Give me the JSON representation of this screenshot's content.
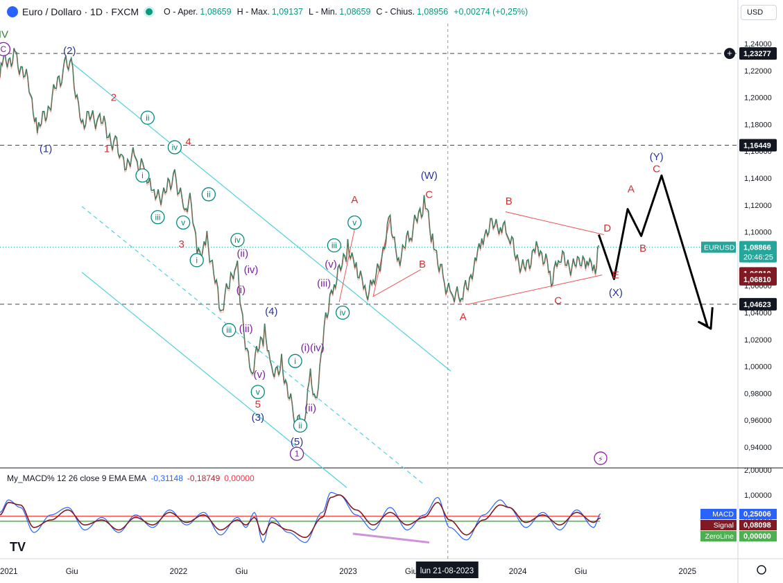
{
  "header": {
    "title": "Euro / Dollaro · 1D · FXCM",
    "open_label": "O - Aper.",
    "open": "1,08659",
    "high_label": "H - Max.",
    "high": "1,09137",
    "low_label": "L - Min.",
    "low": "1,08659",
    "close_label": "C - Chius.",
    "close": "1,08956",
    "change": "+0,00274 (+0,25%)"
  },
  "currency": "USD",
  "crosshair_date": "lun 21-08-2023",
  "macd_header": {
    "name": "My_MACD% 12 26 close 9 EMA EMA",
    "v1": "-0,31148",
    "v2": "-0,18749",
    "v3": "0,00000"
  },
  "chart_data": {
    "type": "line",
    "price_axis": {
      "ticks": [
        "1,24000",
        "1,22000",
        "1,20000",
        "1,18000",
        "1,16000",
        "1,14000",
        "1,12000",
        "1,10000",
        "1,08000",
        "1,06000",
        "1,04000",
        "1,02000",
        "1,00000",
        "0,98000",
        "0,96000",
        "0,94000"
      ],
      "tick_values": [
        1.24,
        1.22,
        1.2,
        1.18,
        1.16,
        1.14,
        1.12,
        1.1,
        1.08,
        1.06,
        1.04,
        1.02,
        1.0,
        0.98,
        0.96,
        0.94
      ],
      "range": [
        0.925,
        1.255
      ]
    },
    "time_axis": {
      "ticks": [
        "2021",
        "Giu",
        "2022",
        "Giu",
        "2023",
        "Giu",
        "2024",
        "Giu",
        "2025"
      ],
      "tick_values": [
        2021.0,
        2021.42,
        2022.0,
        2022.42,
        2023.0,
        2023.42,
        2024.0,
        2024.42,
        2025.0
      ],
      "range": [
        2021.0,
        2025.35
      ]
    },
    "price_series": {
      "name": "EURUSD",
      "x": [
        2021.0,
        2021.02,
        2021.09,
        2021.18,
        2021.22,
        2021.38,
        2021.42,
        2021.48,
        2021.58,
        2021.68,
        2021.72,
        2021.8,
        2021.85,
        2021.9,
        2021.99,
        2022.03,
        2022.09,
        2022.12,
        2022.17,
        2022.22,
        2022.3,
        2022.36,
        2022.4,
        2022.43,
        2022.48,
        2022.56,
        2022.6,
        2022.66,
        2022.73,
        2022.79,
        2022.83,
        2022.86,
        2022.92,
        2022.97,
        2023.0,
        2023.05,
        2023.1,
        2023.16,
        2023.2,
        2023.3,
        2023.35,
        2023.42,
        2023.5,
        2023.55,
        2023.62,
        2023.67,
        2023.72,
        2023.8,
        2023.84,
        2023.95,
        2024.0,
        2024.09,
        2024.17,
        2024.25,
        2024.3,
        2024.42,
        2024.46,
        2024.51,
        2024.53
      ],
      "y": [
        1.215,
        1.225,
        1.233,
        1.205,
        1.173,
        1.222,
        1.226,
        1.183,
        1.185,
        1.165,
        1.152,
        1.155,
        1.146,
        1.124,
        1.133,
        1.145,
        1.115,
        1.122,
        1.08,
        1.098,
        1.04,
        1.063,
        1.07,
        1.035,
        0.995,
        1.026,
        0.992,
        1.005,
        0.962,
        0.954,
        0.99,
        0.972,
        1.04,
        1.058,
        1.068,
        1.09,
        1.078,
        1.052,
        1.058,
        1.108,
        1.082,
        1.096,
        1.123,
        1.095,
        1.064,
        1.055,
        1.048,
        1.078,
        1.098,
        1.108,
        1.094,
        1.072,
        1.092,
        1.066,
        1.079,
        1.074,
        1.082,
        1.076,
        1.09
      ]
    },
    "price_labels": [
      {
        "text": "1,23277",
        "value": 1.23277,
        "bg": "#131722",
        "fg": "#ffffff"
      },
      {
        "text": "1,16449",
        "value": 1.16449,
        "bg": "#131722",
        "fg": "#ffffff"
      },
      {
        "text": "1,06810",
        "value": 1.0692,
        "bg": "#801922",
        "fg": "#ffffff"
      },
      {
        "text": "1,06810",
        "value": 1.0648,
        "bg": "#801922",
        "fg": "#ffffff"
      },
      {
        "text": "1,04623",
        "value": 1.04623,
        "bg": "#131722",
        "fg": "#ffffff"
      }
    ],
    "current_price": {
      "symbol": "EURUSD",
      "price": "1,08866",
      "countdown": "20:46:25",
      "value": 1.08866,
      "color": "#26a69a"
    },
    "horizontal_levels": [
      1.23277,
      1.16449,
      1.04623
    ],
    "wave_labels": [
      {
        "text": "IV",
        "x": 2021.02,
        "y": 1.247,
        "color": "#2e7d32",
        "style": "plain"
      },
      {
        "text": "C",
        "x": 2021.02,
        "y": 1.236,
        "color": "#7b1fa2",
        "style": "circle"
      },
      {
        "text": "(2)",
        "x": 2021.41,
        "y": 1.235,
        "color": "#283593",
        "style": "plain"
      },
      {
        "text": "2",
        "x": 2021.67,
        "y": 1.2,
        "color": "#d32f2f",
        "style": "plain"
      },
      {
        "text": "(1)",
        "x": 2021.27,
        "y": 1.162,
        "color": "#283593",
        "style": "plain"
      },
      {
        "text": "1",
        "x": 2021.63,
        "y": 1.162,
        "color": "#d32f2f",
        "style": "plain"
      },
      {
        "text": "ii",
        "x": 2021.87,
        "y": 1.185,
        "color": "#00897b",
        "style": "circle"
      },
      {
        "text": "iv",
        "x": 2022.03,
        "y": 1.163,
        "color": "#00897b",
        "style": "circle"
      },
      {
        "text": "4",
        "x": 2022.11,
        "y": 1.167,
        "color": "#d32f2f",
        "style": "plain"
      },
      {
        "text": "i",
        "x": 2021.84,
        "y": 1.142,
        "color": "#00897b",
        "style": "circle"
      },
      {
        "text": "ii",
        "x": 2022.23,
        "y": 1.128,
        "color": "#00897b",
        "style": "circle"
      },
      {
        "text": "iii",
        "x": 2021.93,
        "y": 1.111,
        "color": "#00897b",
        "style": "circle"
      },
      {
        "text": "v",
        "x": 2022.08,
        "y": 1.107,
        "color": "#00897b",
        "style": "circle"
      },
      {
        "text": "3",
        "x": 2022.07,
        "y": 1.091,
        "color": "#d32f2f",
        "style": "plain"
      },
      {
        "text": "i",
        "x": 2022.16,
        "y": 1.079,
        "color": "#00897b",
        "style": "circle"
      },
      {
        "text": "iv",
        "x": 2022.4,
        "y": 1.094,
        "color": "#00897b",
        "style": "circle"
      },
      {
        "text": "(ii)",
        "x": 2022.43,
        "y": 1.084,
        "color": "#7b1fa2",
        "style": "plain"
      },
      {
        "text": "(iv)",
        "x": 2022.48,
        "y": 1.072,
        "color": "#7b1fa2",
        "style": "plain"
      },
      {
        "text": "(i)",
        "x": 2022.42,
        "y": 1.057,
        "color": "#7b1fa2",
        "style": "plain"
      },
      {
        "text": "(4)",
        "x": 2022.6,
        "y": 1.041,
        "color": "#283593",
        "style": "plain"
      },
      {
        "text": "iii",
        "x": 2022.35,
        "y": 1.027,
        "color": "#00897b",
        "style": "circle"
      },
      {
        "text": "(iii)",
        "x": 2022.45,
        "y": 1.028,
        "color": "#7b1fa2",
        "style": "plain"
      },
      {
        "text": "(v)",
        "x": 2022.53,
        "y": 0.994,
        "color": "#7b1fa2",
        "style": "plain"
      },
      {
        "text": "v",
        "x": 2022.52,
        "y": 0.981,
        "color": "#00897b",
        "style": "circle"
      },
      {
        "text": "5",
        "x": 2022.52,
        "y": 0.972,
        "color": "#d32f2f",
        "style": "plain"
      },
      {
        "text": "(3)",
        "x": 2022.52,
        "y": 0.962,
        "color": "#283593",
        "style": "plain"
      },
      {
        "text": "(i)",
        "x": 2022.8,
        "y": 1.014,
        "color": "#7b1fa2",
        "style": "plain"
      },
      {
        "text": "(iv)",
        "x": 2022.87,
        "y": 1.014,
        "color": "#7b1fa2",
        "style": "plain"
      },
      {
        "text": "i",
        "x": 2022.74,
        "y": 1.004,
        "color": "#00897b",
        "style": "circle"
      },
      {
        "text": "(ii)",
        "x": 2022.83,
        "y": 0.969,
        "color": "#7b1fa2",
        "style": "plain"
      },
      {
        "text": "ii",
        "x": 2022.77,
        "y": 0.956,
        "color": "#00897b",
        "style": "circle"
      },
      {
        "text": "(5)",
        "x": 2022.75,
        "y": 0.944,
        "color": "#283593",
        "style": "plain"
      },
      {
        "text": "1",
        "x": 2022.75,
        "y": 0.935,
        "color": "#7b1fa2",
        "style": "circle"
      },
      {
        "text": "(iii)",
        "x": 2022.91,
        "y": 1.062,
        "color": "#7b1fa2",
        "style": "plain"
      },
      {
        "text": "iv",
        "x": 2023.02,
        "y": 1.04,
        "color": "#00897b",
        "style": "circle"
      },
      {
        "text": "(v)",
        "x": 2022.95,
        "y": 1.076,
        "color": "#7b1fa2",
        "style": "plain"
      },
      {
        "text": "iii",
        "x": 2022.97,
        "y": 1.09,
        "color": "#00897b",
        "style": "circle"
      },
      {
        "text": "v",
        "x": 2023.09,
        "y": 1.107,
        "color": "#00897b",
        "style": "circle"
      },
      {
        "text": "A",
        "x": 2023.09,
        "y": 1.124,
        "color": "#d32f2f",
        "style": "plain"
      },
      {
        "text": "(W)",
        "x": 2023.53,
        "y": 1.142,
        "color": "#283593",
        "style": "plain"
      },
      {
        "text": "C",
        "x": 2023.53,
        "y": 1.128,
        "color": "#d32f2f",
        "style": "plain"
      },
      {
        "text": "B",
        "x": 2023.49,
        "y": 1.076,
        "color": "#d32f2f",
        "style": "plain"
      },
      {
        "text": "A",
        "x": 2023.73,
        "y": 1.037,
        "color": "#d32f2f",
        "style": "plain"
      },
      {
        "text": "B",
        "x": 2024.0,
        "y": 1.123,
        "color": "#d32f2f",
        "style": "plain"
      },
      {
        "text": "C",
        "x": 2024.29,
        "y": 1.049,
        "color": "#d32f2f",
        "style": "plain"
      },
      {
        "text": "D",
        "x": 2024.58,
        "y": 1.103,
        "color": "#d32f2f",
        "style": "plain"
      },
      {
        "text": "E",
        "x": 2024.63,
        "y": 1.068,
        "color": "#d32f2f",
        "style": "plain"
      },
      {
        "text": "(X)",
        "x": 2024.63,
        "y": 1.055,
        "color": "#283593",
        "style": "plain"
      },
      {
        "text": "A",
        "x": 2024.72,
        "y": 1.132,
        "color": "#d32f2f",
        "style": "plain"
      },
      {
        "text": "B",
        "x": 2024.79,
        "y": 1.088,
        "color": "#d32f2f",
        "style": "plain"
      },
      {
        "text": "(Y)",
        "x": 2024.87,
        "y": 1.156,
        "color": "#283593",
        "style": "plain"
      },
      {
        "text": "C",
        "x": 2024.87,
        "y": 1.147,
        "color": "#d32f2f",
        "style": "plain"
      }
    ],
    "projection": {
      "x": [
        2024.53,
        2024.62,
        2024.7,
        2024.78,
        2024.9,
        2025.17,
        2025.12,
        2025.19,
        2025.2
      ],
      "y": [
        1.098,
        1.065,
        1.117,
        1.097,
        1.142,
        1.03,
        1.033,
        1.028,
        1.044
      ]
    },
    "macd_panel": {
      "ticks": [
        "2,00000",
        "1,00000",
        "0,00000"
      ],
      "tick_values": [
        2.0,
        1.0,
        0.0
      ],
      "range": [
        -1.55,
        2.05
      ],
      "x": [
        2021.0,
        2021.05,
        2021.12,
        2021.2,
        2021.3,
        2021.4,
        2021.5,
        2021.6,
        2021.7,
        2021.8,
        2021.9,
        2022.0,
        2022.1,
        2022.2,
        2022.3,
        2022.4,
        2022.45,
        2022.5,
        2022.55,
        2022.6,
        2022.7,
        2022.8,
        2022.9,
        2022.95,
        2023.0,
        2023.1,
        2023.2,
        2023.3,
        2023.4,
        2023.5,
        2023.58,
        2023.65,
        2023.75,
        2023.85,
        2023.95,
        2024.0,
        2024.1,
        2024.2,
        2024.3,
        2024.4,
        2024.5,
        2024.54
      ],
      "macd": [
        0.3,
        0.8,
        0.5,
        -0.5,
        0.2,
        0.5,
        -0.4,
        0.1,
        -0.5,
        0.2,
        -0.3,
        0.4,
        -0.2,
        0.3,
        -0.6,
        0.1,
        -0.3,
        0.3,
        -0.9,
        0.1,
        -0.5,
        -0.9,
        0.3,
        1.1,
        1.0,
        0.2,
        -0.4,
        0.5,
        -0.4,
        0.2,
        0.9,
        -0.3,
        -0.8,
        0.2,
        0.8,
        0.5,
        -0.3,
        0.3,
        -0.4,
        0.4,
        -0.3,
        0.25
      ],
      "signal": [
        0.2,
        0.7,
        0.6,
        -0.3,
        0.0,
        0.4,
        -0.2,
        0.0,
        -0.4,
        0.1,
        -0.2,
        0.3,
        -0.1,
        0.2,
        -0.4,
        0.0,
        -0.2,
        0.1,
        -0.6,
        -0.1,
        -0.4,
        -0.7,
        0.1,
        0.9,
        1.0,
        0.4,
        -0.2,
        0.3,
        -0.2,
        0.1,
        0.7,
        0.0,
        -0.6,
        0.0,
        0.6,
        0.5,
        -0.1,
        0.2,
        -0.2,
        0.3,
        -0.1,
        0.08
      ],
      "signal_line_value": 0.15,
      "zero_line_value": -0.05,
      "labels": [
        {
          "text": "MACD",
          "value": "0,25006",
          "bg": "#2962ff"
        },
        {
          "text": "Signal",
          "value": "0,08098",
          "bg": "#801922"
        },
        {
          "text": "ZeroLine",
          "value": "0,00000",
          "bg": "#4caf50"
        }
      ],
      "divergence": {
        "x": [
          2023.08,
          2023.53
        ],
        "y": [
          -0.55,
          -0.9
        ],
        "color": "#ce93d8"
      }
    },
    "channel_lines": [
      {
        "x": [
          2021.42,
          2022.58
        ],
        "y": [
          1.226,
          1.107
        ],
        "color": "#4dd0e1",
        "dash": false,
        "note": "upper"
      }
    ]
  }
}
